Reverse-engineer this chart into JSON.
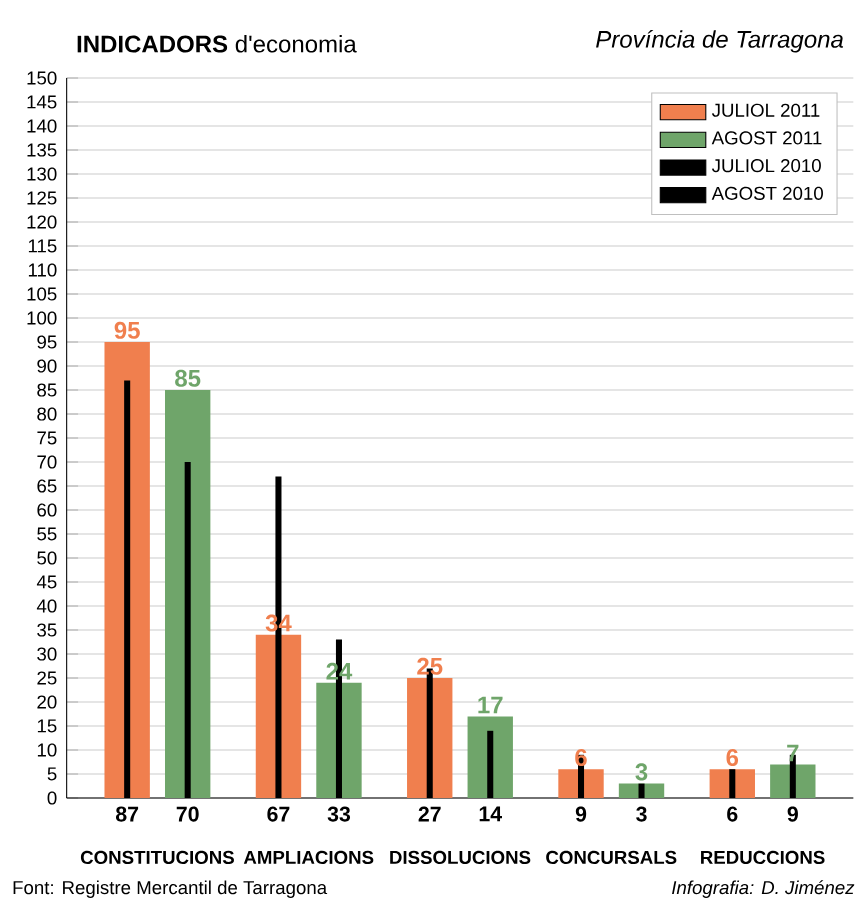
{
  "chart_data": {
    "type": "bar",
    "title": "**INDICADORS** d'economia",
    "subtitle": "*Província de Tarragona*",
    "categories": [
      "CONSTITUCIONS",
      "AMPLIACIONS",
      "DISSOLUCIONS",
      "CONCURSALS",
      "REDUCCIONS"
    ],
    "series": [
      {
        "name": "JULIOL 2011",
        "color": "#f07f4e",
        "values": [
          95,
          34,
          25,
          6,
          6
        ]
      },
      {
        "name": "AGOST 2011",
        "color": "#6fa56a",
        "values": [
          85,
          24,
          17,
          3,
          7
        ]
      },
      {
        "name": "JULIOL 2010",
        "color": "#000000",
        "values": [
          87,
          67,
          27,
          9,
          6
        ]
      },
      {
        "name": "AGOST 2010",
        "color": "#000000",
        "values": [
          70,
          33,
          14,
          3,
          9
        ]
      }
    ],
    "ylim": [
      0,
      150
    ],
    "yticks": [
      0,
      5,
      10,
      15,
      20,
      25,
      30,
      35,
      40,
      45,
      50,
      55,
      60,
      65,
      70,
      75,
      80,
      85,
      90,
      95,
      100,
      105,
      110,
      115,
      120,
      125,
      130,
      135,
      140,
      145,
      150
    ],
    "grid": "y",
    "legend": "top right",
    "data_labels": true,
    "annotations": [
      "Font: Registre Mercantil de Tarragona",
      "*Infografia: D. Jiménez*"
    ]
  }
}
